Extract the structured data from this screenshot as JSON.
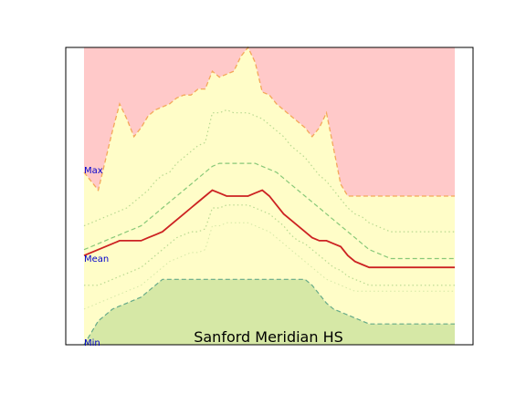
{
  "chart_data": {
    "type": "area",
    "title": "Sanford Meridian HS",
    "xlabel": "",
    "ylabel": "",
    "grid": false,
    "xlim": [
      0,
      52
    ],
    "ylim": [
      0,
      100
    ],
    "x": [
      0,
      2,
      3,
      4,
      5,
      6,
      7,
      8,
      9,
      10,
      11,
      12,
      13,
      14,
      15,
      16,
      17,
      18,
      19,
      20,
      21,
      22,
      23,
      24,
      25,
      26,
      27,
      28,
      29,
      30,
      31,
      32,
      33,
      34,
      35,
      36,
      37,
      38,
      39,
      40,
      41,
      42,
      43,
      44,
      45,
      46,
      47,
      48,
      49,
      50,
      51,
      52
    ],
    "band_labels": {
      "max": "Max",
      "mean": "Mean",
      "min": "Min"
    },
    "series": [
      {
        "key": "max",
        "values": [
          58,
          52,
          62,
          72,
          81,
          76,
          70,
          73,
          77,
          79,
          80,
          81,
          83,
          84,
          84,
          86,
          86,
          92,
          90,
          91,
          92,
          97,
          100,
          95,
          85,
          84,
          81,
          79,
          77,
          75,
          73,
          70,
          73,
          78,
          66,
          54,
          50,
          50,
          50,
          50,
          50,
          50,
          50,
          50,
          50,
          50,
          50,
          50,
          50,
          50,
          50,
          50
        ]
      },
      {
        "key": "upper_p90",
        "values": [
          40,
          42,
          43,
          44,
          45,
          46,
          48,
          50,
          52,
          55,
          57,
          58,
          61,
          63,
          65,
          67,
          68,
          78,
          78,
          79,
          78,
          78,
          78,
          77,
          76,
          74,
          72,
          70,
          67,
          65,
          63,
          60,
          57,
          55,
          52,
          49,
          46,
          44,
          43,
          41,
          40,
          39,
          38,
          38,
          38,
          38,
          38,
          38,
          38,
          38,
          38,
          38
        ]
      },
      {
        "key": "upper_p75",
        "values": [
          32,
          34,
          35,
          36,
          37,
          38,
          39,
          40,
          42,
          44,
          46,
          48,
          50,
          52,
          54,
          56,
          58,
          60,
          61,
          61,
          61,
          61,
          61,
          61,
          60,
          59,
          58,
          56,
          54,
          52,
          50,
          48,
          46,
          44,
          42,
          40,
          38,
          36,
          34,
          32,
          31,
          30,
          29,
          29,
          29,
          29,
          29,
          29,
          29,
          29,
          29,
          29
        ]
      },
      {
        "key": "mean",
        "values": [
          30,
          32,
          33,
          34,
          35,
          35,
          35,
          35,
          36,
          37,
          38,
          40,
          42,
          44,
          46,
          48,
          50,
          52,
          51,
          50,
          50,
          50,
          50,
          51,
          52,
          50,
          47,
          44,
          42,
          40,
          38,
          36,
          35,
          35,
          34,
          33,
          30,
          28,
          27,
          26,
          26,
          26,
          26,
          26,
          26,
          26,
          26,
          26,
          26,
          26,
          26,
          26
        ]
      },
      {
        "key": "lower_p25",
        "values": [
          20,
          20,
          21,
          22,
          23,
          24,
          25,
          26,
          28,
          30,
          32,
          34,
          36,
          37,
          38,
          38,
          39,
          46,
          46,
          47,
          47,
          47,
          47,
          46,
          45,
          44,
          42,
          40,
          37,
          35,
          34,
          32,
          30,
          28,
          26,
          25,
          23,
          22,
          21,
          20,
          20,
          20,
          20,
          20,
          20,
          20,
          20,
          20,
          20,
          20,
          20,
          20
        ]
      },
      {
        "key": "lower_p10",
        "values": [
          12,
          14,
          15,
          16,
          17,
          18,
          19,
          20,
          22,
          24,
          26,
          28,
          29,
          30,
          31,
          31,
          32,
          40,
          40,
          41,
          41,
          41,
          41,
          40,
          39,
          38,
          36,
          34,
          32,
          30,
          28,
          26,
          24,
          22,
          21,
          20,
          19,
          18,
          18,
          18,
          18,
          18,
          18,
          18,
          18,
          18,
          18,
          18,
          18,
          18,
          18,
          18
        ]
      },
      {
        "key": "min",
        "values": [
          0,
          8,
          10,
          12,
          13,
          14,
          15,
          16,
          18,
          20,
          22,
          22,
          22,
          22,
          22,
          22,
          22,
          22,
          22,
          22,
          22,
          22,
          22,
          22,
          22,
          22,
          22,
          22,
          22,
          22,
          22,
          20,
          17,
          14,
          12,
          11,
          10,
          9,
          8,
          7,
          7,
          7,
          7,
          7,
          7,
          7,
          7,
          7,
          7,
          7,
          7,
          7
        ]
      }
    ],
    "colors": {
      "max_band": "#ffc9c9",
      "mid_band": "#fffdc8",
      "min_band": "#d6e8a6",
      "max_line": "#f4a85a",
      "p90_line": "#b8d890",
      "p75_line": "#88c878",
      "mean_line": "#cc2222",
      "min_line": "#66aa88",
      "label_text": "#0000cc"
    }
  }
}
